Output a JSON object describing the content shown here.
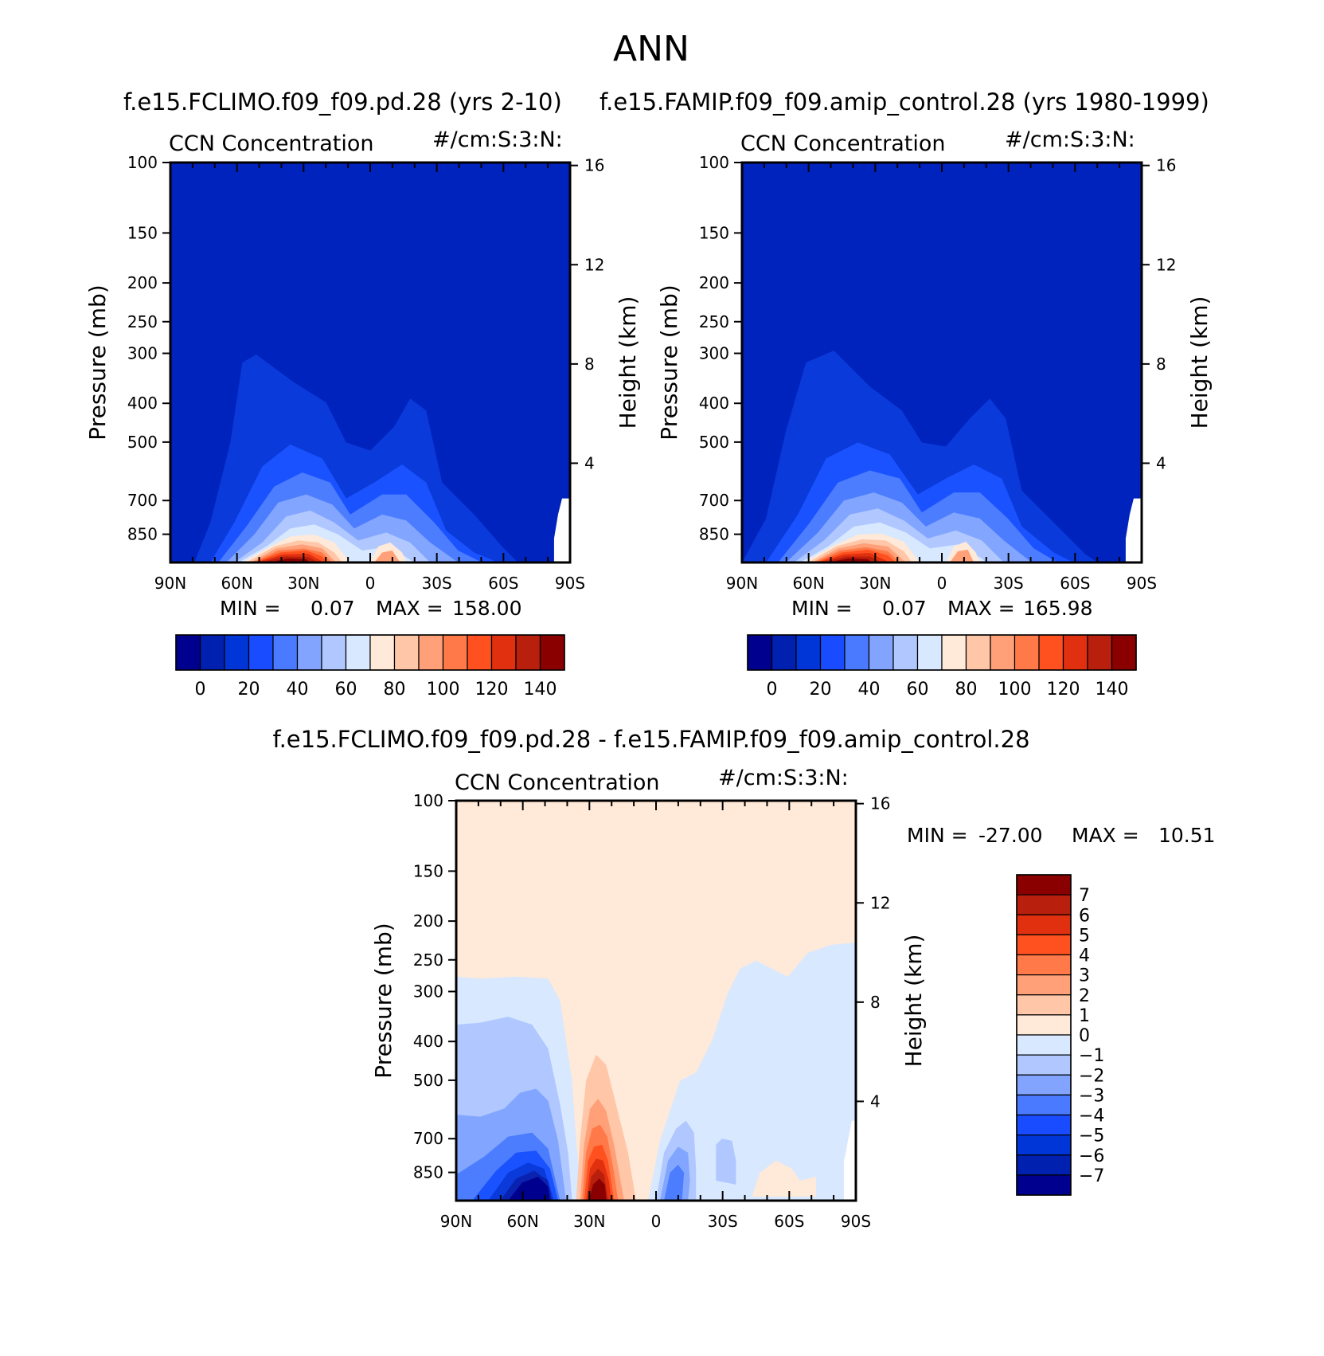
{
  "page_title": "ANN",
  "colors": {
    "abs_scale": [
      "#00008e",
      "#0020b0",
      "#0036d8",
      "#1a4cff",
      "#4a7aff",
      "#82a4ff",
      "#b0c8ff",
      "#d8e8ff",
      "#ffe9d8",
      "#ffc6a8",
      "#ffa078",
      "#ff7a48",
      "#ff5020",
      "#e03010",
      "#b81f0c",
      "#8a0000"
    ],
    "diff_scale": [
      "#00008e",
      "#0020b0",
      "#0036d8",
      "#1a4cff",
      "#4a7aff",
      "#82a4ff",
      "#b0c8ff",
      "#d8e8ff",
      "#ffe9d8",
      "#ffc6a8",
      "#ffa078",
      "#ff7a48",
      "#ff5020",
      "#e03010",
      "#b81f0c",
      "#8a0000"
    ],
    "line": "#000000"
  },
  "chart_data": [
    {
      "type": "contour",
      "title": "f.e15.FCLIMO.f09_f09.pd.28 (yrs 2-10)",
      "variable_label": "CCN Concentration",
      "units_label": "#/cm:S:3:N:",
      "ylabel": "Pressure (mb)",
      "y2label": "Height (km)",
      "x_ticks": [
        "90N",
        "60N",
        "30N",
        "0",
        "30S",
        "60S",
        "90S"
      ],
      "x_values": [
        90,
        60,
        30,
        0,
        -30,
        -60,
        -90
      ],
      "y_ticks": [
        100,
        150,
        200,
        250,
        300,
        400,
        500,
        700,
        850
      ],
      "y2_ticks": [
        16,
        12,
        8,
        4
      ],
      "ylim": [
        100,
        1000
      ],
      "xlim": [
        90,
        -90
      ],
      "min_label": "MIN =",
      "min_value": "0.07",
      "max_label": "MAX =",
      "max_value": "158.00",
      "colorbar_labels": [
        "0",
        "20",
        "40",
        "60",
        "80",
        "100",
        "120",
        "140"
      ],
      "colorbar_levels": [
        -10,
        0,
        10,
        20,
        30,
        40,
        50,
        60,
        70,
        80,
        90,
        100,
        110,
        120,
        130,
        140,
        150
      ],
      "max_location": {
        "lat": 35,
        "pressure": 950
      }
    },
    {
      "type": "contour",
      "title": "f.e15.FAMIP.f09_f09.amip_control.28 (yrs 1980-1999)",
      "variable_label": "CCN Concentration",
      "units_label": "#/cm:S:3:N:",
      "ylabel": "Pressure (mb)",
      "y2label": "Height (km)",
      "x_ticks": [
        "90N",
        "60N",
        "30N",
        "0",
        "30S",
        "60S",
        "90S"
      ],
      "x_values": [
        90,
        60,
        30,
        0,
        -30,
        -60,
        -90
      ],
      "y_ticks": [
        100,
        150,
        200,
        250,
        300,
        400,
        500,
        700,
        850
      ],
      "y2_ticks": [
        16,
        12,
        8,
        4
      ],
      "ylim": [
        100,
        1000
      ],
      "xlim": [
        90,
        -90
      ],
      "min_label": "MIN =",
      "min_value": "0.07",
      "max_label": "MAX =",
      "max_value": "165.98",
      "colorbar_labels": [
        "0",
        "20",
        "40",
        "60",
        "80",
        "100",
        "120",
        "140"
      ],
      "colorbar_levels": [
        -10,
        0,
        10,
        20,
        30,
        40,
        50,
        60,
        70,
        80,
        90,
        100,
        110,
        120,
        130,
        140,
        150
      ],
      "max_location": {
        "lat": 40,
        "pressure": 950
      }
    },
    {
      "type": "contour",
      "title": "f.e15.FCLIMO.f09_f09.pd.28 - f.e15.FAMIP.f09_f09.amip_control.28",
      "variable_label": "CCN Concentration",
      "units_label": "#/cm:S:3:N:",
      "ylabel": "Pressure (mb)",
      "y2label": "Height (km)",
      "x_ticks": [
        "90N",
        "60N",
        "30N",
        "0",
        "30S",
        "60S",
        "90S"
      ],
      "x_values": [
        90,
        60,
        30,
        0,
        -30,
        -60,
        -90
      ],
      "y_ticks": [
        100,
        150,
        200,
        250,
        300,
        400,
        500,
        700,
        850
      ],
      "y2_ticks": [
        16,
        12,
        8,
        4
      ],
      "ylim": [
        100,
        1000
      ],
      "xlim": [
        90,
        -90
      ],
      "min_label": "MIN =",
      "min_value": "-27.00",
      "max_label": "MAX =",
      "max_value": "10.51",
      "colorbar_labels": [
        "7",
        "6",
        "5",
        "4",
        "3",
        "2",
        "1",
        "0",
        "-1",
        "-2",
        "-3",
        "-4",
        "-5",
        "-6",
        "-7"
      ],
      "colorbar_levels": [
        -7,
        -6,
        -5,
        -4,
        -3,
        -2,
        -1,
        0,
        1,
        2,
        3,
        4,
        5,
        6,
        7
      ],
      "min_location": {
        "lat": 45,
        "pressure": 950
      },
      "max_location": {
        "lat": 20,
        "pressure": 950
      }
    }
  ]
}
